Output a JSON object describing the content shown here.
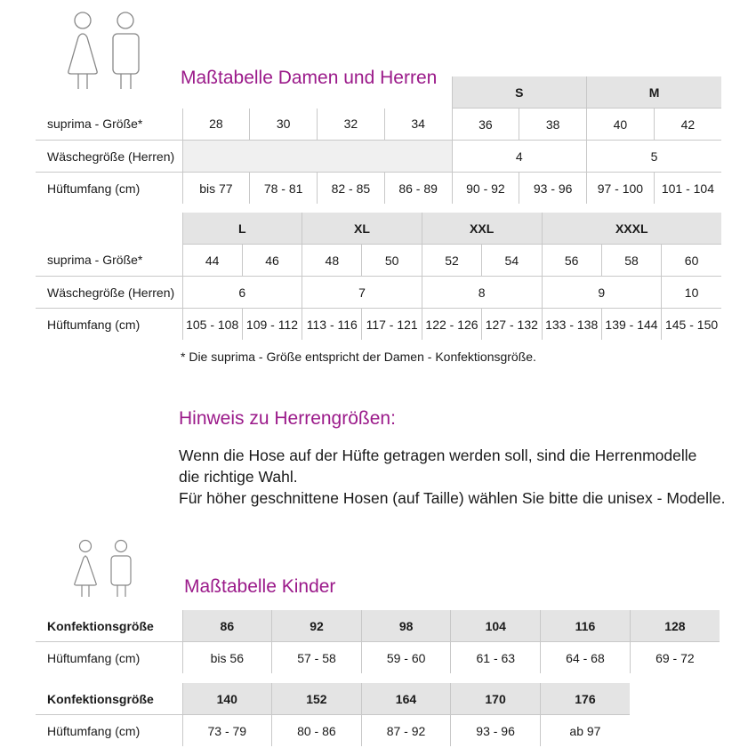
{
  "adult": {
    "title": "Maßtabelle Damen und Herren",
    "row_labels": {
      "size": "suprima - Größe*",
      "laundry": "Wäschegröße (Herren)",
      "hip": "Hüftumfang (cm)"
    },
    "table1": {
      "groups": [
        "S",
        "M"
      ],
      "sizes": [
        "28",
        "30",
        "32",
        "34",
        "36",
        "38",
        "40",
        "42"
      ],
      "laundry": [
        "4",
        "5"
      ],
      "hip": [
        "bis 77",
        "78 - 81",
        "82 - 85",
        "86 - 89",
        "90 - 92",
        "93 - 96",
        "97 - 100",
        "101 - 104"
      ]
    },
    "table2": {
      "groups": [
        "L",
        "XL",
        "XXL",
        "XXXL"
      ],
      "sizes": [
        "44",
        "46",
        "48",
        "50",
        "52",
        "54",
        "56",
        "58",
        "60"
      ],
      "laundry": [
        "6",
        "7",
        "8",
        "9",
        "10"
      ],
      "hip": [
        "105 - 108",
        "109 - 112",
        "113 - 116",
        "117 - 121",
        "122 - 126",
        "127 - 132",
        "133 - 138",
        "139 - 144",
        "145 - 150"
      ]
    },
    "footnote": "* Die suprima - Größe entspricht der Damen - Konfektionsgröße."
  },
  "hint": {
    "title": "Hinweis zu Herrengrößen:",
    "lines": [
      "Wenn die Hose auf der Hüfte getragen werden soll, sind die Herrenmodelle",
      "die richtige Wahl.",
      "Für höher geschnittene Hosen (auf Taille) wählen Sie bitte die unisex - Modelle."
    ]
  },
  "kids": {
    "title": "Maßtabelle Kinder",
    "row_labels": {
      "size": "Konfektionsgröße",
      "hip": "Hüftumfang (cm)"
    },
    "table1": {
      "sizes": [
        "86",
        "92",
        "98",
        "104",
        "116",
        "128"
      ],
      "hip": [
        "bis 56",
        "57 - 58",
        "59 - 60",
        "61 - 63",
        "64 - 68",
        "69 - 72"
      ]
    },
    "table2": {
      "sizes": [
        "140",
        "152",
        "164",
        "170",
        "176"
      ],
      "hip": [
        "73 - 79",
        "80 - 86",
        "87 - 92",
        "93 - 96",
        "ab 97"
      ]
    }
  },
  "colors": {
    "accent": "#9b1a8a",
    "header_bg": "#e4e4e4",
    "grid": "#c8c8c8"
  },
  "icons": [
    "woman-icon",
    "man-icon"
  ]
}
